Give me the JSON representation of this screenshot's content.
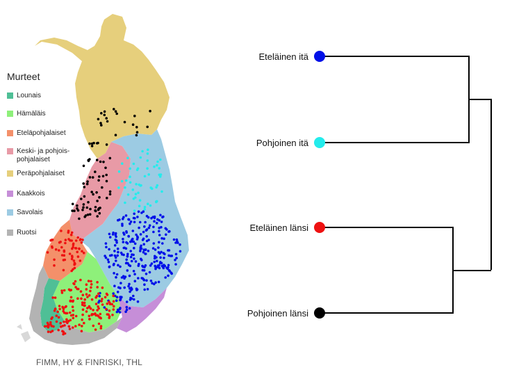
{
  "legend": {
    "title": "Murteet",
    "items": [
      {
        "label": "Lounais",
        "color": "#4fbf96"
      },
      {
        "label": "Hämäläis",
        "color": "#8ef07a"
      },
      {
        "label": "Eteläpohjalaiset",
        "color": "#f4906a"
      },
      {
        "label": "Keski- ja pohjois-\npohjalaiset",
        "color": "#e89aa6"
      },
      {
        "label": "Peräpohjalaiset",
        "color": "#e6cf7c"
      },
      {
        "label": "Kaakkois",
        "color": "#c68ed8"
      },
      {
        "label": "Savolais",
        "color": "#9ccbe3"
      },
      {
        "label": "Ruotsi",
        "color": "#b3b3b3"
      }
    ]
  },
  "dendrogram": {
    "leaves": [
      {
        "label": "Eteläinen itä",
        "color": "#0010e8"
      },
      {
        "label": "Pohjoinen itä",
        "color": "#23ecec"
      },
      {
        "label": "Eteläinen länsi",
        "color": "#ee1111"
      },
      {
        "label": "Pohjoinen länsi",
        "color": "#000000"
      }
    ]
  },
  "credit": "FIMM, HY & FINRISKI, THL",
  "colors": {
    "line": "#000000",
    "dot_black": "#000000",
    "dot_cyan": "#23ecec",
    "dot_blue": "#0010e8",
    "dot_red": "#ee1111"
  }
}
